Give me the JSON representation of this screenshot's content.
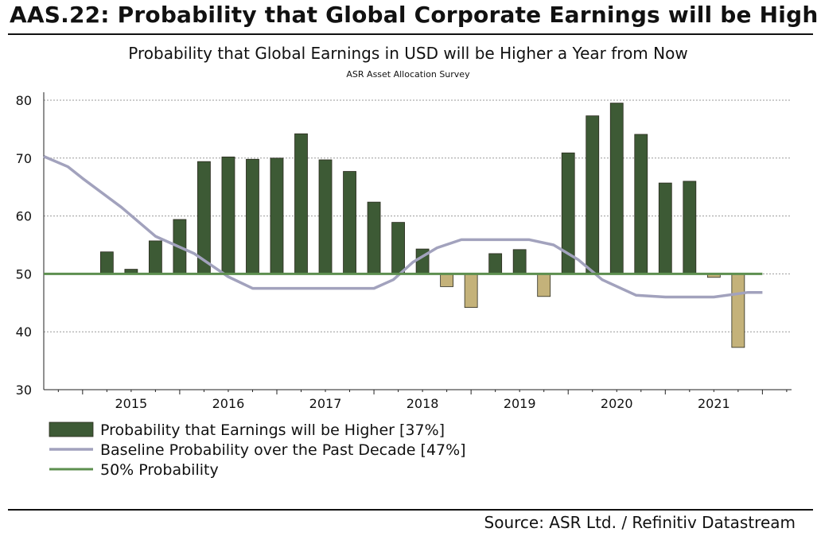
{
  "header": {
    "title": "AAS.22: Probability that Global Corporate Earnings will be Higher",
    "source": "Source: ASR Ltd.  / Refinitiv Datastream"
  },
  "chart_data": {
    "type": "bar",
    "title": "Probability that Global Earnings in USD will be Higher a Year from Now",
    "subtitle": "ASR Asset Allocation Survey",
    "xlabel": "",
    "ylabel": "",
    "ylim": [
      30,
      80
    ],
    "yticks": [
      30,
      40,
      50,
      60,
      70,
      80
    ],
    "year_labels": [
      "2015",
      "2016",
      "2017",
      "2018",
      "2019",
      "2020",
      "2021"
    ],
    "grid": true,
    "baseline": 50,
    "x_range": [
      2014.6,
      2022.3
    ],
    "colors": {
      "bar_above": "#3d5a35",
      "bar_below": "#c4b27a",
      "baseline_line": "#a2a2bd",
      "fifty_line": "#5d8f4f"
    },
    "series": [
      {
        "name": "Probability that Earnings will be Higher [37%]",
        "kind": "bar",
        "x": [
          2015.25,
          2015.5,
          2015.75,
          2016.0,
          2016.25,
          2016.5,
          2016.75,
          2017.0,
          2017.25,
          2017.5,
          2017.75,
          2018.0,
          2018.25,
          2018.5,
          2018.75,
          2019.0,
          2019.25,
          2019.5,
          2019.75,
          2020.0,
          2020.25,
          2020.5,
          2020.75,
          2021.0,
          2021.25,
          2021.5,
          2021.75,
          2022.0
        ],
        "values": [
          53.8,
          50.8,
          55.7,
          59.4,
          69.4,
          70.2,
          69.8,
          70.0,
          74.2,
          69.7,
          67.7,
          62.4,
          58.9,
          54.3,
          47.8,
          44.2,
          53.5,
          54.2,
          46.1,
          70.9,
          77.3,
          79.5,
          74.1,
          65.7,
          66.0,
          49.4,
          37.3,
          null
        ]
      },
      {
        "name": "Baseline Probability over the Past Decade [47%]",
        "kind": "line",
        "x": [
          2014.6,
          2014.85,
          2015.0,
          2015.4,
          2015.75,
          2016.15,
          2016.5,
          2016.75,
          2017.0,
          2017.5,
          2018.0,
          2018.2,
          2018.4,
          2018.65,
          2018.9,
          2019.1,
          2019.3,
          2019.6,
          2019.85,
          2020.1,
          2020.35,
          2020.7,
          2021.0,
          2021.2,
          2021.5,
          2021.85,
          2022.0
        ],
        "values": [
          70.3,
          68.5,
          66.5,
          61.5,
          56.5,
          53.5,
          49.5,
          47.5,
          47.5,
          47.5,
          47.5,
          49.0,
          52.0,
          54.5,
          55.9,
          55.9,
          55.9,
          55.9,
          55.0,
          52.5,
          49.0,
          46.3,
          46.0,
          46.0,
          46.0,
          46.8,
          46.8
        ]
      },
      {
        "name": "50% Probability",
        "kind": "hline",
        "value": 50
      }
    ],
    "legend_position": "bottom-left"
  }
}
